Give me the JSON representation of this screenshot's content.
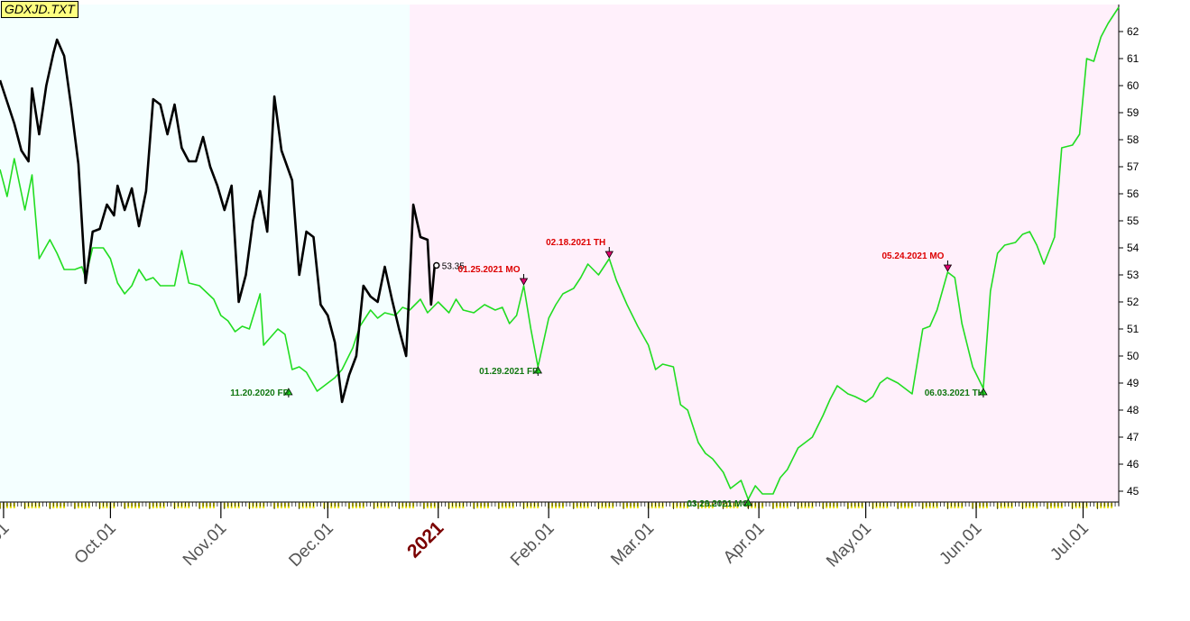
{
  "title": "GDXJD.TXT",
  "colors": {
    "bg_left": "#f4ffff",
    "bg_right": "#fff0fb",
    "green_series": "#22dd22",
    "black_series": "#000000",
    "high_label": "#dd0000",
    "low_label": "#117711",
    "year_label": "#7a0000",
    "tick_yellow": "#e8e000"
  },
  "chart_data": {
    "type": "line",
    "title": "",
    "xlabel": "",
    "ylabel": "",
    "ylim": [
      44.6,
      63.0
    ],
    "y_ticks": [
      45,
      46,
      47,
      48,
      49,
      50,
      51,
      52,
      53,
      54,
      55,
      56,
      57,
      58,
      59,
      60,
      61,
      62
    ],
    "x_range": [
      "2020-08-31",
      "2021-07-11"
    ],
    "x_ticks": [
      {
        "label": ".01",
        "date": "2020-09-01"
      },
      {
        "label": "Oct.01",
        "date": "2020-10-01"
      },
      {
        "label": "Nov.01",
        "date": "2020-11-01"
      },
      {
        "label": "Dec.01",
        "date": "2020-12-01"
      },
      {
        "label": "2021",
        "date": "2021-01-01",
        "year": true
      },
      {
        "label": "Feb.01",
        "date": "2021-02-01"
      },
      {
        "label": "Mar.01",
        "date": "2021-03-01"
      },
      {
        "label": "Apr.01",
        "date": "2021-04-01"
      },
      {
        "label": "May.01",
        "date": "2021-05-01"
      },
      {
        "label": "Jun.01",
        "date": "2021-06-01"
      },
      {
        "label": "Jul.01",
        "date": "2021-07-01"
      }
    ],
    "shade_split_date": "2020-12-24",
    "grid": false,
    "series": [
      {
        "color": "#22dd22",
        "points": [
          [
            "2020-08-31",
            56.9
          ],
          [
            "2020-09-02",
            55.9
          ],
          [
            "2020-09-04",
            57.3
          ],
          [
            "2020-09-07",
            55.4
          ],
          [
            "2020-09-09",
            56.7
          ],
          [
            "2020-09-11",
            53.6
          ],
          [
            "2020-09-14",
            54.3
          ],
          [
            "2020-09-16",
            53.8
          ],
          [
            "2020-09-18",
            53.2
          ],
          [
            "2020-09-21",
            53.2
          ],
          [
            "2020-09-23",
            53.3
          ],
          [
            "2020-09-24",
            52.9
          ],
          [
            "2020-09-26",
            54.0
          ],
          [
            "2020-09-29",
            54.0
          ],
          [
            "2020-10-01",
            53.6
          ],
          [
            "2020-10-03",
            52.7
          ],
          [
            "2020-10-05",
            52.3
          ],
          [
            "2020-10-07",
            52.6
          ],
          [
            "2020-10-09",
            53.2
          ],
          [
            "2020-10-11",
            52.8
          ],
          [
            "2020-10-13",
            52.9
          ],
          [
            "2020-10-15",
            52.6
          ],
          [
            "2020-10-19",
            52.6
          ],
          [
            "2020-10-21",
            53.9
          ],
          [
            "2020-10-23",
            52.7
          ],
          [
            "2020-10-26",
            52.6
          ],
          [
            "2020-10-30",
            52.1
          ],
          [
            "2020-11-01",
            51.5
          ],
          [
            "2020-11-03",
            51.3
          ],
          [
            "2020-11-05",
            50.9
          ],
          [
            "2020-11-07",
            51.1
          ],
          [
            "2020-11-09",
            51.0
          ],
          [
            "2020-11-12",
            52.3
          ],
          [
            "2020-11-13",
            50.4
          ],
          [
            "2020-11-15",
            50.7
          ],
          [
            "2020-11-17",
            51.0
          ],
          [
            "2020-11-19",
            50.8
          ],
          [
            "2020-11-21",
            49.5
          ],
          [
            "2020-11-23",
            49.6
          ],
          [
            "2020-11-25",
            49.4
          ],
          [
            "2020-11-28",
            48.7
          ],
          [
            "2020-11-30",
            48.9
          ],
          [
            "2020-12-03",
            49.2
          ],
          [
            "2020-12-05",
            49.5
          ],
          [
            "2020-12-08",
            50.3
          ],
          [
            "2020-12-10",
            51.1
          ],
          [
            "2020-12-13",
            51.7
          ],
          [
            "2020-12-15",
            51.4
          ],
          [
            "2020-12-17",
            51.6
          ],
          [
            "2020-12-20",
            51.5
          ],
          [
            "2020-12-22",
            51.8
          ],
          [
            "2020-12-24",
            51.7
          ],
          [
            "2020-12-27",
            52.1
          ],
          [
            "2020-12-29",
            51.6
          ],
          [
            "2021-01-01",
            52.0
          ],
          [
            "2021-01-04",
            51.6
          ],
          [
            "2021-01-06",
            52.1
          ],
          [
            "2021-01-08",
            51.7
          ],
          [
            "2021-01-11",
            51.6
          ],
          [
            "2021-01-14",
            51.9
          ],
          [
            "2021-01-17",
            51.7
          ],
          [
            "2021-01-19",
            51.8
          ],
          [
            "2021-01-21",
            51.2
          ],
          [
            "2021-01-23",
            51.5
          ],
          [
            "2021-01-25",
            52.6
          ],
          [
            "2021-01-27",
            51.0
          ],
          [
            "2021-01-29",
            49.6
          ],
          [
            "2021-02-01",
            51.4
          ],
          [
            "2021-02-03",
            51.9
          ],
          [
            "2021-02-05",
            52.3
          ],
          [
            "2021-02-08",
            52.5
          ],
          [
            "2021-02-10",
            52.9
          ],
          [
            "2021-02-12",
            53.4
          ],
          [
            "2021-02-15",
            53.0
          ],
          [
            "2021-02-18",
            53.6
          ],
          [
            "2021-02-20",
            52.8
          ],
          [
            "2021-02-23",
            51.9
          ],
          [
            "2021-02-26",
            51.1
          ],
          [
            "2021-03-01",
            50.4
          ],
          [
            "2021-03-03",
            49.5
          ],
          [
            "2021-03-05",
            49.7
          ],
          [
            "2021-03-08",
            49.6
          ],
          [
            "2021-03-10",
            48.2
          ],
          [
            "2021-03-12",
            48.0
          ],
          [
            "2021-03-15",
            46.8
          ],
          [
            "2021-03-17",
            46.4
          ],
          [
            "2021-03-19",
            46.2
          ],
          [
            "2021-03-22",
            45.7
          ],
          [
            "2021-03-24",
            45.1
          ],
          [
            "2021-03-27",
            45.4
          ],
          [
            "2021-03-29",
            44.7
          ],
          [
            "2021-03-31",
            45.2
          ],
          [
            "2021-04-02",
            44.9
          ],
          [
            "2021-04-05",
            44.9
          ],
          [
            "2021-04-07",
            45.5
          ],
          [
            "2021-04-09",
            45.8
          ],
          [
            "2021-04-12",
            46.6
          ],
          [
            "2021-04-14",
            46.8
          ],
          [
            "2021-04-16",
            47.0
          ],
          [
            "2021-04-19",
            47.8
          ],
          [
            "2021-04-21",
            48.4
          ],
          [
            "2021-04-23",
            48.9
          ],
          [
            "2021-04-26",
            48.6
          ],
          [
            "2021-04-28",
            48.5
          ],
          [
            "2021-05-01",
            48.3
          ],
          [
            "2021-05-03",
            48.5
          ],
          [
            "2021-05-05",
            49.0
          ],
          [
            "2021-05-07",
            49.2
          ],
          [
            "2021-05-10",
            49.0
          ],
          [
            "2021-05-12",
            48.8
          ],
          [
            "2021-05-14",
            48.6
          ],
          [
            "2021-05-17",
            51.0
          ],
          [
            "2021-05-19",
            51.1
          ],
          [
            "2021-05-21",
            51.7
          ],
          [
            "2021-05-24",
            53.1
          ],
          [
            "2021-05-26",
            52.9
          ],
          [
            "2021-05-28",
            51.2
          ],
          [
            "2021-05-31",
            49.6
          ],
          [
            "2021-06-03",
            48.8
          ],
          [
            "2021-06-05",
            52.4
          ],
          [
            "2021-06-07",
            53.8
          ],
          [
            "2021-06-09",
            54.1
          ],
          [
            "2021-06-12",
            54.2
          ],
          [
            "2021-06-14",
            54.5
          ],
          [
            "2021-06-16",
            54.6
          ],
          [
            "2021-06-18",
            54.1
          ],
          [
            "2021-06-20",
            53.4
          ],
          [
            "2021-06-23",
            54.4
          ],
          [
            "2021-06-25",
            57.7
          ],
          [
            "2021-06-28",
            57.8
          ],
          [
            "2021-06-30",
            58.2
          ],
          [
            "2021-07-02",
            61.0
          ],
          [
            "2021-07-04",
            60.9
          ],
          [
            "2021-07-06",
            61.8
          ],
          [
            "2021-07-08",
            62.3
          ],
          [
            "2021-07-11",
            62.9
          ]
        ]
      },
      {
        "color": "#000000",
        "points": [
          [
            "2020-08-31",
            60.2
          ],
          [
            "2020-09-02",
            59.4
          ],
          [
            "2020-09-04",
            58.6
          ],
          [
            "2020-09-06",
            57.6
          ],
          [
            "2020-09-08",
            57.2
          ],
          [
            "2020-09-09",
            59.9
          ],
          [
            "2020-09-11",
            58.2
          ],
          [
            "2020-09-13",
            60.0
          ],
          [
            "2020-09-15",
            61.2
          ],
          [
            "2020-09-16",
            61.7
          ],
          [
            "2020-09-18",
            61.1
          ],
          [
            "2020-09-20",
            59.2
          ],
          [
            "2020-09-22",
            57.1
          ],
          [
            "2020-09-24",
            52.7
          ],
          [
            "2020-09-26",
            54.6
          ],
          [
            "2020-09-28",
            54.7
          ],
          [
            "2020-09-30",
            55.6
          ],
          [
            "2020-10-02",
            55.2
          ],
          [
            "2020-10-03",
            56.3
          ],
          [
            "2020-10-05",
            55.4
          ],
          [
            "2020-10-07",
            56.2
          ],
          [
            "2020-10-09",
            54.8
          ],
          [
            "2020-10-11",
            56.1
          ],
          [
            "2020-10-13",
            59.5
          ],
          [
            "2020-10-15",
            59.3
          ],
          [
            "2020-10-17",
            58.2
          ],
          [
            "2020-10-19",
            59.3
          ],
          [
            "2020-10-21",
            57.7
          ],
          [
            "2020-10-23",
            57.2
          ],
          [
            "2020-10-25",
            57.2
          ],
          [
            "2020-10-27",
            58.1
          ],
          [
            "2020-10-29",
            57.0
          ],
          [
            "2020-10-31",
            56.3
          ],
          [
            "2020-11-02",
            55.4
          ],
          [
            "2020-11-04",
            56.3
          ],
          [
            "2020-11-06",
            52.0
          ],
          [
            "2020-11-08",
            53.0
          ],
          [
            "2020-11-10",
            55.0
          ],
          [
            "2020-11-12",
            56.1
          ],
          [
            "2020-11-14",
            54.6
          ],
          [
            "2020-11-16",
            59.6
          ],
          [
            "2020-11-18",
            57.6
          ],
          [
            "2020-11-21",
            56.5
          ],
          [
            "2020-11-23",
            53.0
          ],
          [
            "2020-11-25",
            54.6
          ],
          [
            "2020-11-27",
            54.4
          ],
          [
            "2020-11-29",
            51.9
          ],
          [
            "2020-12-01",
            51.5
          ],
          [
            "2020-12-03",
            50.5
          ],
          [
            "2020-12-05",
            48.3
          ],
          [
            "2020-12-07",
            49.3
          ],
          [
            "2020-12-09",
            50.0
          ],
          [
            "2020-12-11",
            52.6
          ],
          [
            "2020-12-13",
            52.2
          ],
          [
            "2020-12-15",
            52.0
          ],
          [
            "2020-12-17",
            53.3
          ],
          [
            "2020-12-19",
            52.1
          ],
          [
            "2020-12-21",
            51.0
          ],
          [
            "2020-12-23",
            50.0
          ],
          [
            "2020-12-25",
            55.6
          ],
          [
            "2020-12-27",
            54.4
          ],
          [
            "2020-12-29",
            54.3
          ],
          [
            "2020-12-30",
            51.9
          ],
          [
            "2020-12-31",
            53.35
          ]
        ]
      }
    ],
    "last_value_label": "53.35",
    "annotations": [
      {
        "label": "11.20.2020 FR",
        "date": "2020-11-20",
        "value": 48.8,
        "kind": "low"
      },
      {
        "label": "01.25.2021 MO",
        "date": "2021-01-25",
        "value": 52.6,
        "kind": "high"
      },
      {
        "label": "01.29.2021 FR",
        "date": "2021-01-29",
        "value": 49.6,
        "kind": "low"
      },
      {
        "label": "02.18.2021 TH",
        "date": "2021-02-18",
        "value": 53.6,
        "kind": "high"
      },
      {
        "label": "03.29.2021 MO",
        "date": "2021-03-29",
        "value": 44.7,
        "kind": "low"
      },
      {
        "label": "05.24.2021 MO",
        "date": "2021-05-24",
        "value": 53.1,
        "kind": "high"
      },
      {
        "label": "06.03.2021 TH",
        "date": "2021-06-03",
        "value": 48.8,
        "kind": "low"
      }
    ]
  }
}
